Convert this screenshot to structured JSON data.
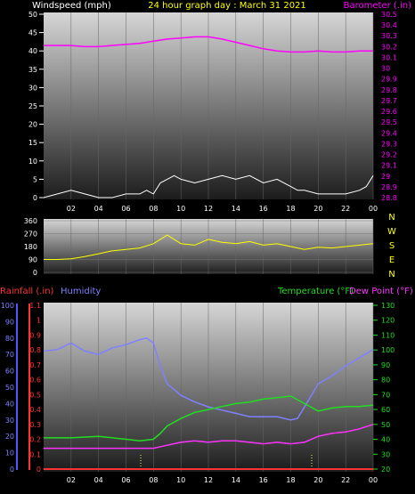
{
  "header": {
    "left_label": "Windspeed (mph)",
    "center_label": "24 hour graph day : March 31 2021",
    "right_label": "Barometer (.in)"
  },
  "colors": {
    "white": "#ffffff",
    "yellow": "#ffff00",
    "magenta": "#ff00ff",
    "green": "#00ff00",
    "blue_axis": "#5555ff",
    "humidity": "#8080ff",
    "rainfall": "#ff3333",
    "dewpoint": "#ff33ff",
    "temperature": "#22dd22"
  },
  "x_ticks": [
    "02",
    "04",
    "06",
    "08",
    "10",
    "12",
    "14",
    "16",
    "18",
    "20",
    "22",
    "00"
  ],
  "chart_data": [
    {
      "type": "line",
      "panel": "wind-barometer",
      "xlabel": "",
      "left_axis": {
        "title": "Windspeed (mph)",
        "range": [
          0,
          50
        ],
        "ticks": [
          "0",
          "5",
          "10",
          "15",
          "20",
          "25",
          "30",
          "35",
          "40",
          "45",
          "50"
        ]
      },
      "right_axis": {
        "title": "Barometer (.in)",
        "range": [
          28.8,
          30.5
        ],
        "ticks": [
          "28.8",
          "28.9",
          "29",
          "29.1",
          "29.2",
          "29.3",
          "29.4",
          "29.5",
          "29.6",
          "29.7",
          "29.8",
          "29.9",
          "30",
          "30.1",
          "30.2",
          "30.3",
          "30.4",
          "30.5"
        ]
      },
      "series": [
        {
          "name": "Windspeed (mph)",
          "axis": "left",
          "color": "#ffffff",
          "x": [
            0,
            1,
            2,
            3,
            4,
            5,
            6,
            7,
            7.5,
            8,
            8.5,
            9,
            9.5,
            10,
            11,
            12,
            13,
            14,
            15,
            16,
            17,
            18,
            18.5,
            19,
            20,
            21,
            22,
            23,
            23.5,
            24
          ],
          "y": [
            0,
            1,
            2,
            1,
            0,
            0,
            1,
            1,
            2,
            1,
            4,
            5,
            6,
            5,
            4,
            5,
            6,
            5,
            6,
            4,
            5,
            3,
            2,
            2,
            1,
            1,
            1,
            2,
            3,
            6
          ]
        },
        {
          "name": "Barometer (.in)",
          "axis": "right",
          "color": "#ff00ff",
          "x": [
            0,
            1,
            2,
            3,
            4,
            5,
            6,
            7,
            8,
            9,
            10,
            11,
            12,
            13,
            14,
            15,
            16,
            17,
            18,
            19,
            20,
            21,
            22,
            23,
            24
          ],
          "y": [
            30.21,
            30.21,
            30.21,
            30.2,
            30.2,
            30.21,
            30.22,
            30.23,
            30.25,
            30.27,
            30.28,
            30.29,
            30.29,
            30.27,
            30.24,
            30.21,
            30.18,
            30.16,
            30.15,
            30.15,
            30.16,
            30.15,
            30.15,
            30.16,
            30.16
          ]
        }
      ]
    },
    {
      "type": "line",
      "panel": "wind-direction",
      "right_labels": [
        "N",
        "W",
        "S",
        "E",
        "N"
      ],
      "left_axis": {
        "range": [
          0,
          360
        ],
        "ticks": [
          "0",
          "90",
          "180",
          "270",
          "360"
        ]
      },
      "series": [
        {
          "name": "Wind direction",
          "color": "#ffff00",
          "x": [
            0,
            1,
            2,
            3,
            4,
            5,
            6,
            7,
            8,
            9,
            10,
            11,
            12,
            13,
            14,
            15,
            16,
            17,
            18,
            19,
            20,
            21,
            22,
            23,
            24
          ],
          "y": [
            90,
            90,
            95,
            110,
            130,
            150,
            160,
            170,
            200,
            260,
            200,
            190,
            230,
            210,
            200,
            215,
            190,
            200,
            180,
            160,
            175,
            170,
            180,
            190,
            200
          ]
        }
      ]
    },
    {
      "type": "line",
      "panel": "rain-humidity-temperature",
      "left_labels": [
        "Rainfall (.in)",
        "Humidity"
      ],
      "right_labels": [
        "Temperature (°F)",
        "Dew Point (°F)"
      ],
      "humidity_axis": {
        "range": [
          0,
          100
        ],
        "ticks": [
          "0",
          "10",
          "20",
          "30",
          "40",
          "50",
          "60",
          "70",
          "80",
          "90",
          "100"
        ]
      },
      "rainfall_axis": {
        "range": [
          0,
          1.1
        ],
        "ticks": [
          "0",
          "0.1",
          "0.2",
          "0.3",
          "0.4",
          "0.5",
          "0.6",
          "0.7",
          "0.8",
          "0.9",
          "1",
          "1.1"
        ]
      },
      "temperature_axis": {
        "range": [
          20,
          130
        ],
        "ticks": [
          "20",
          "30",
          "40",
          "50",
          "60",
          "70",
          "80",
          "90",
          "100",
          "110",
          "120",
          "130"
        ]
      },
      "series": [
        {
          "name": "Humidity",
          "axis": "humidity",
          "color": "#8080ff",
          "x": [
            0,
            1,
            2,
            3,
            4,
            5,
            6,
            7,
            7.5,
            8,
            8.5,
            9,
            10,
            11,
            12,
            13,
            14,
            15,
            16,
            17,
            18,
            18.5,
            19,
            20,
            21,
            22,
            23,
            24
          ],
          "y": [
            72,
            73,
            77,
            72,
            70,
            74,
            76,
            79,
            80,
            77,
            63,
            52,
            45,
            41,
            38,
            36,
            34,
            32,
            32,
            32,
            30,
            31,
            38,
            52,
            57,
            63,
            68,
            73
          ]
        },
        {
          "name": "Temperature (°F)",
          "axis": "temperature",
          "color": "#22dd22",
          "x": [
            0,
            2,
            4,
            6,
            7,
            8,
            8.5,
            9,
            10,
            11,
            12,
            13,
            14,
            15,
            16,
            17,
            18,
            19,
            20,
            21,
            22,
            23,
            24
          ],
          "y": [
            41,
            41,
            42,
            40,
            39,
            40,
            44,
            49,
            54,
            58,
            60,
            62,
            64,
            65,
            67,
            68,
            69,
            64,
            59,
            61,
            62,
            62,
            63
          ]
        },
        {
          "name": "Dew Point (°F)",
          "axis": "temperature",
          "color": "#ff33ff",
          "x": [
            0,
            2,
            4,
            6,
            8,
            9,
            10,
            11,
            12,
            13,
            14,
            15,
            16,
            17,
            18,
            19,
            20,
            21,
            22,
            23,
            24
          ],
          "y": [
            34,
            34,
            34,
            34,
            34,
            36,
            38,
            39,
            38,
            39,
            39,
            38,
            37,
            38,
            37,
            38,
            42,
            44,
            45,
            47,
            50
          ]
        },
        {
          "name": "Rainfall (.in)",
          "axis": "rainfall",
          "color": "#ff3333",
          "x": [
            0,
            24
          ],
          "y": [
            0,
            0
          ]
        }
      ]
    }
  ]
}
